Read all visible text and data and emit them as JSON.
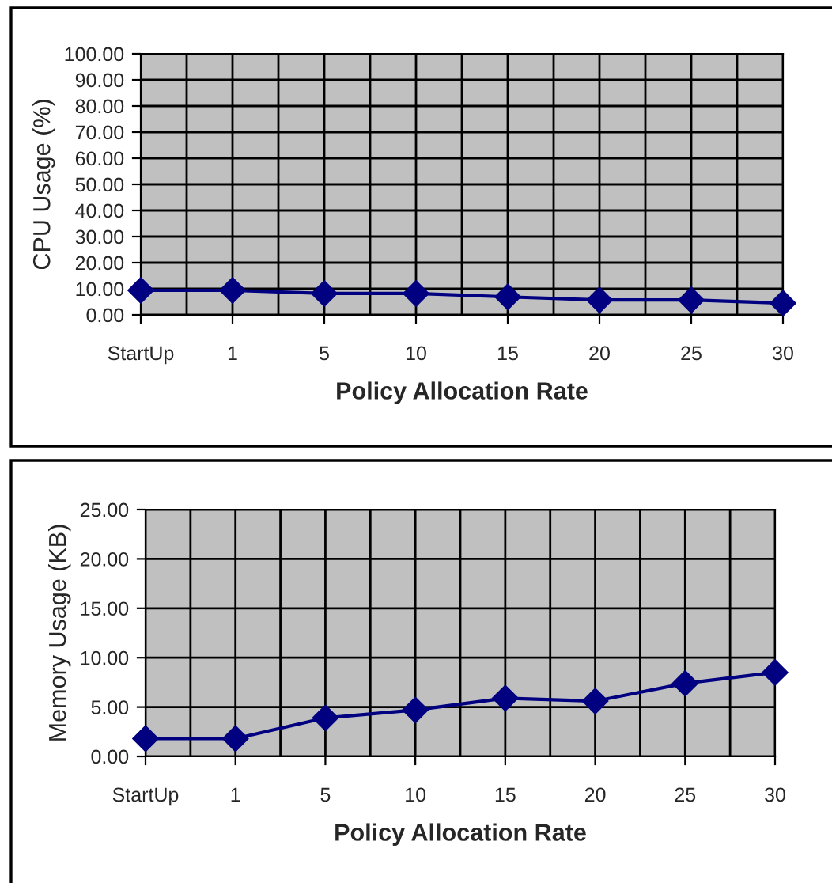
{
  "chart_data": [
    {
      "type": "line",
      "xlabel": "Policy Allocation Rate",
      "ylabel": "CPU Usage (%)",
      "categories": [
        "StartUp",
        "1",
        "5",
        "10",
        "15",
        "20",
        "25",
        "30"
      ],
      "series": [
        {
          "color": "#000080",
          "values": [
            9.4,
            9.4,
            8.2,
            8.2,
            6.9,
            5.7,
            5.7,
            4.5
          ]
        }
      ],
      "ylim": [
        0,
        100
      ],
      "yticks": [
        {
          "value": 0,
          "label": "0.00"
        },
        {
          "value": 10,
          "label": "10.00"
        },
        {
          "value": 20,
          "label": "20.00"
        },
        {
          "value": 30,
          "label": "30.00"
        },
        {
          "value": 40,
          "label": "40.00"
        },
        {
          "value": 50,
          "label": "50.00"
        },
        {
          "value": 60,
          "label": "60.00"
        },
        {
          "value": 70,
          "label": "70.00"
        },
        {
          "value": 80,
          "label": "80.00"
        },
        {
          "value": 90,
          "label": "90.00"
        },
        {
          "value": 100,
          "label": "100.00"
        }
      ],
      "grid": true,
      "legend": false,
      "marker": "diamond",
      "line_style": "solid"
    },
    {
      "type": "line",
      "xlabel": "Policy Allocation Rate",
      "ylabel": "Memory Usage (KB)",
      "categories": [
        "StartUp",
        "1",
        "5",
        "10",
        "15",
        "20",
        "25",
        "30"
      ],
      "series": [
        {
          "color": "#000080",
          "values": [
            1.8,
            1.8,
            3.9,
            4.7,
            5.9,
            5.6,
            7.4,
            8.5
          ]
        }
      ],
      "ylim": [
        0,
        25
      ],
      "yticks": [
        {
          "value": 0,
          "label": "0.00"
        },
        {
          "value": 5,
          "label": "5.00"
        },
        {
          "value": 10,
          "label": "10.00"
        },
        {
          "value": 15,
          "label": "15.00"
        },
        {
          "value": 20,
          "label": "20.00"
        },
        {
          "value": 25,
          "label": "25.00"
        }
      ],
      "grid": true,
      "legend": false,
      "marker": "diamond",
      "line_style": "solid"
    }
  ]
}
